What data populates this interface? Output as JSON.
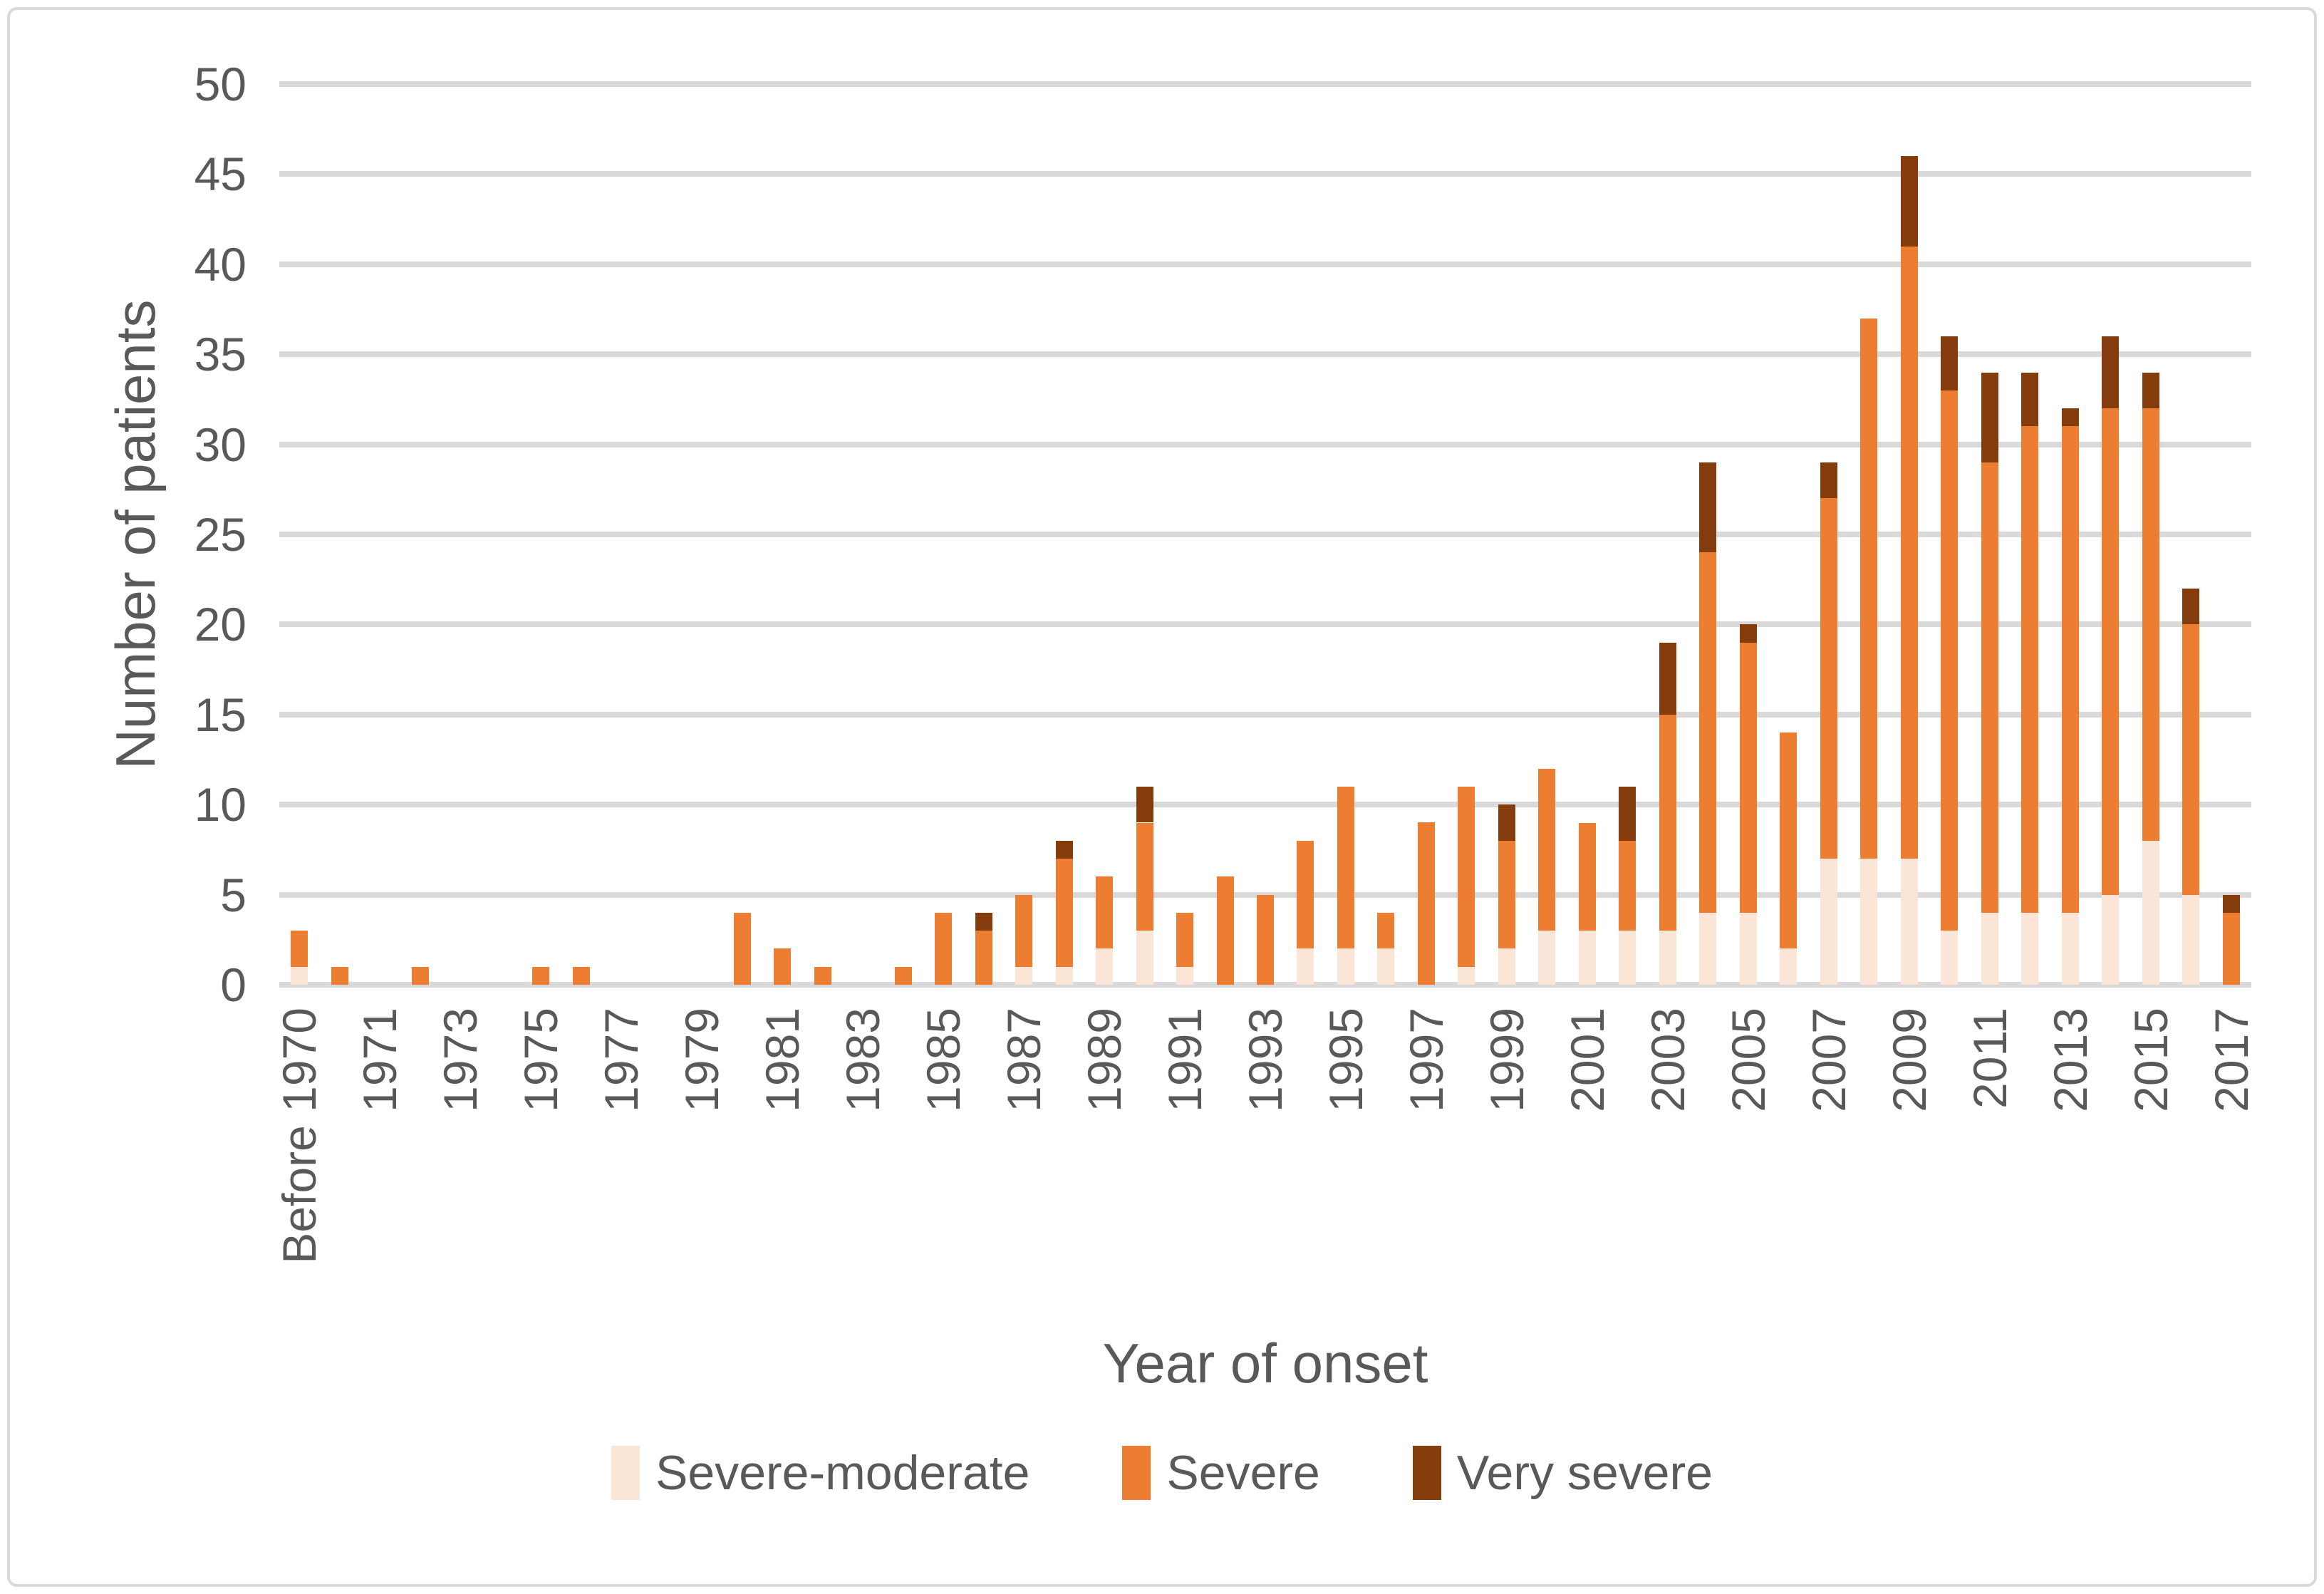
{
  "chart_data": {
    "type": "bar",
    "stacked": true,
    "xlabel": "Year of onset",
    "ylabel": "Number of patients",
    "ylim": [
      0,
      50
    ],
    "y_tick_step": 5,
    "y_tick_labels": [
      "0",
      "5",
      "10",
      "15",
      "20",
      "25",
      "30",
      "35",
      "40",
      "45",
      "50"
    ],
    "grid": "horizontal",
    "legend_position": "bottom",
    "x_tick_interval": 2,
    "x_tick_labels": [
      "Before 1970",
      "1971",
      "1973",
      "1975",
      "1977",
      "1979",
      "1981",
      "1983",
      "1985",
      "1987",
      "1989",
      "1991",
      "1993",
      "1995",
      "1997",
      "1999",
      "2001",
      "2003",
      "2005",
      "2007",
      "2009",
      "2011",
      "2013",
      "2015",
      "2017"
    ],
    "categories": [
      "Before 1970",
      "1970",
      "1971",
      "1972",
      "1973",
      "1974",
      "1975",
      "1976",
      "1977",
      "1978",
      "1979",
      "1980",
      "1981",
      "1982",
      "1983",
      "1984",
      "1985",
      "1986",
      "1987",
      "1988",
      "1989",
      "1990",
      "1991",
      "1992",
      "1993",
      "1994",
      "1995",
      "1996",
      "1997",
      "1998",
      "1999",
      "2000",
      "2001",
      "2002",
      "2003",
      "2004",
      "2005",
      "2006",
      "2007",
      "2008",
      "2009",
      "2010",
      "2011",
      "2012",
      "2013",
      "2014",
      "2015",
      "2016",
      "2017"
    ],
    "series": [
      {
        "name": "Severe-moderate",
        "color": "#FBE5D6",
        "values": [
          1,
          0,
          0,
          0,
          0,
          0,
          0,
          0,
          0,
          0,
          0,
          0,
          0,
          0,
          0,
          0,
          0,
          0,
          1,
          1,
          2,
          3,
          1,
          0,
          0,
          2,
          2,
          2,
          0,
          1,
          2,
          3,
          3,
          3,
          3,
          4,
          4,
          2,
          7,
          7,
          7,
          3,
          4,
          4,
          4,
          5,
          8,
          5,
          0
        ]
      },
      {
        "name": "Severe",
        "color": "#ED7D31",
        "values": [
          2,
          1,
          0,
          1,
          0,
          0,
          1,
          1,
          0,
          0,
          0,
          4,
          2,
          1,
          0,
          1,
          4,
          3,
          4,
          6,
          4,
          6,
          3,
          6,
          5,
          6,
          9,
          2,
          9,
          10,
          6,
          9,
          6,
          5,
          12,
          20,
          15,
          12,
          20,
          30,
          34,
          30,
          25,
          27,
          27,
          27,
          24,
          15,
          4
        ]
      },
      {
        "name": "Very severe",
        "color": "#843C0C",
        "values": [
          0,
          0,
          0,
          0,
          0,
          0,
          0,
          0,
          0,
          0,
          0,
          0,
          0,
          0,
          0,
          0,
          0,
          1,
          0,
          1,
          0,
          2,
          0,
          0,
          0,
          0,
          0,
          0,
          0,
          0,
          2,
          0,
          0,
          3,
          4,
          5,
          1,
          0,
          2,
          0,
          5,
          3,
          5,
          3,
          1,
          4,
          2,
          2,
          1
        ]
      }
    ]
  },
  "colors": {
    "gridline": "#D9D9D9",
    "axis_text": "#595959",
    "border": "#D9D9D9",
    "background": "#FFFFFF"
  }
}
